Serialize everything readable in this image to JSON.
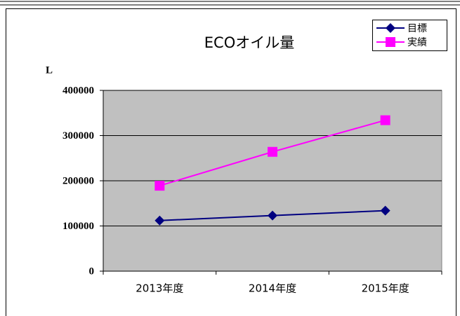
{
  "chart_data": {
    "type": "line",
    "title": "ECOオイル量",
    "y_label": "L",
    "categories": [
      "2013年度",
      "2014年度",
      "2015年度"
    ],
    "series": [
      {
        "name": "目標",
        "color": "#000080",
        "marker": "diamond",
        "values": [
          112000,
          123000,
          134000
        ]
      },
      {
        "name": "実績",
        "color": "#ff00ff",
        "marker": "square",
        "values": [
          189000,
          264000,
          334000
        ]
      }
    ],
    "ylim": [
      0,
      400000
    ],
    "yticks": [
      0,
      100000,
      200000,
      300000,
      400000
    ],
    "grid": true,
    "plot_background": "#c0c0c0",
    "legend": "upper right"
  }
}
